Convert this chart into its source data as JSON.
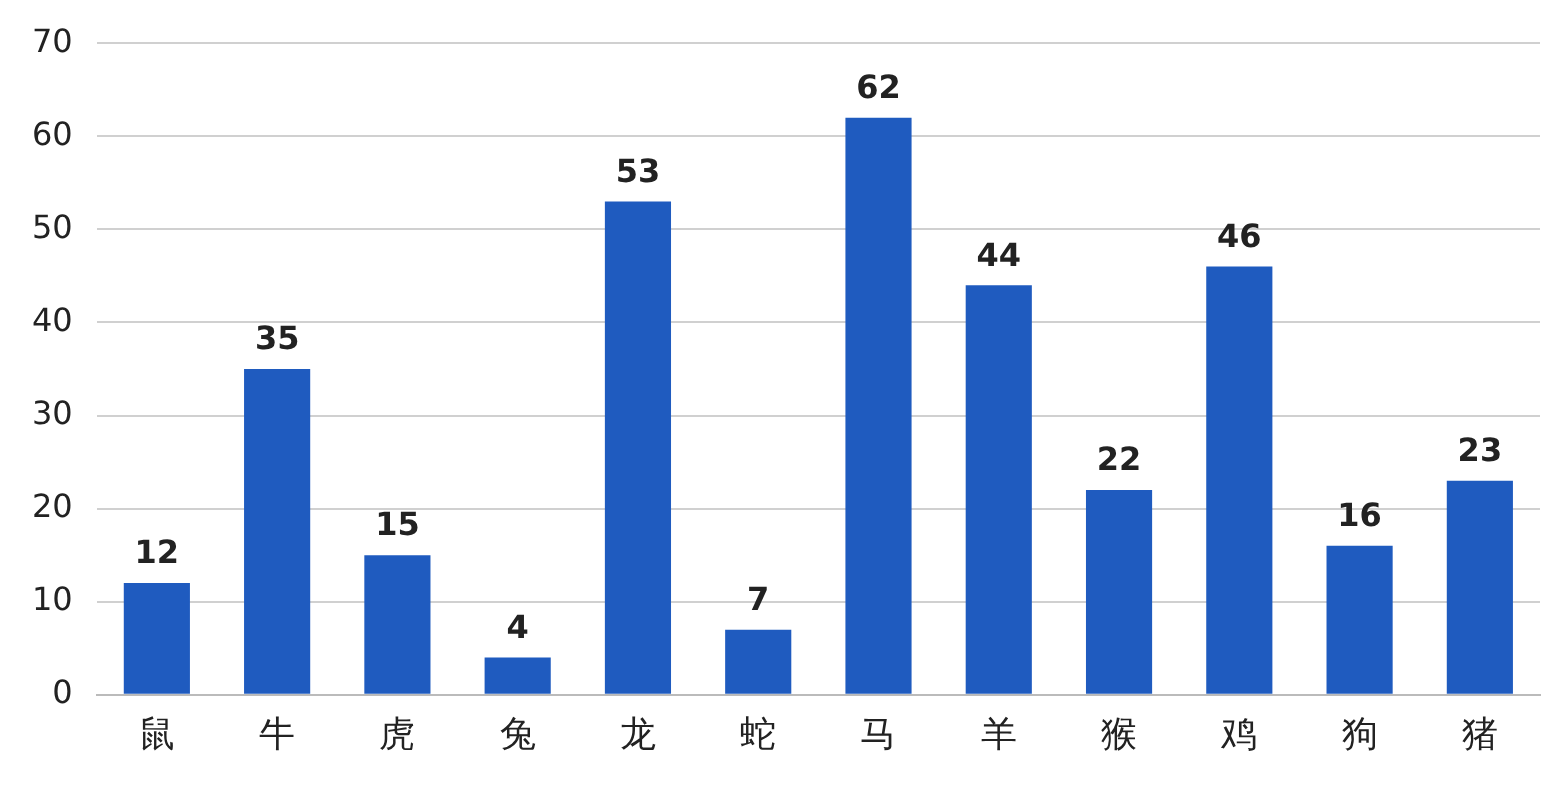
{
  "chart_data": {
    "type": "bar",
    "categories": [
      "鼠",
      "牛",
      "虎",
      "兔",
      "龙",
      "蛇",
      "马",
      "羊",
      "猴",
      "鸡",
      "狗",
      "猪"
    ],
    "values": [
      12,
      35,
      15,
      4,
      53,
      7,
      62,
      44,
      22,
      46,
      16,
      23
    ],
    "color": "#1f5bbf",
    "ylim": [
      0,
      70
    ],
    "yticks": [
      0,
      10,
      20,
      30,
      40,
      50,
      60,
      70
    ],
    "grid": "y",
    "data_labels": true
  }
}
